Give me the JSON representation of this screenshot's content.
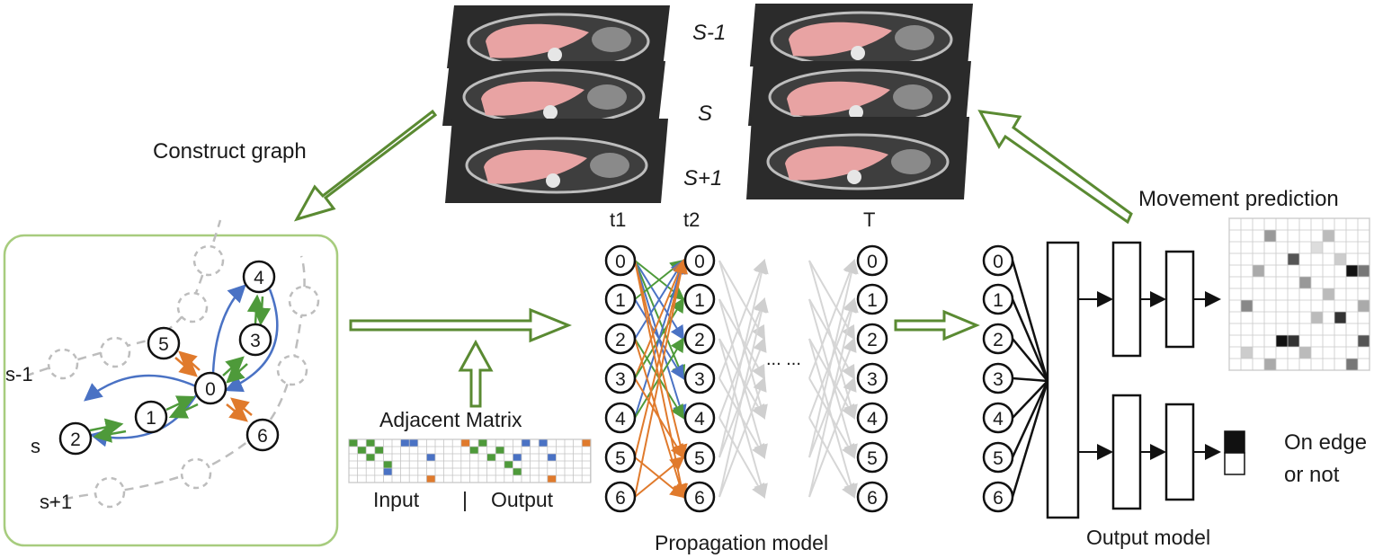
{
  "slices": {
    "prev": "S-1",
    "curr": "S",
    "next": "S+1"
  },
  "arrows": {
    "construct_graph": "Construct graph"
  },
  "graph": {
    "row_labels": {
      "prev": "s-1",
      "curr": "s",
      "next": "s+1"
    },
    "node_ids": [
      "0",
      "1",
      "2",
      "3",
      "4",
      "5",
      "6"
    ]
  },
  "adjacency": {
    "title": "Adjacent Matrix",
    "input": "Input",
    "sep": "|",
    "output": "Output"
  },
  "propagation": {
    "t1": "t1",
    "t2": "t2",
    "T": "T",
    "ellipsis": "... ...",
    "title": "Propagation model",
    "node_ids": [
      "0",
      "1",
      "2",
      "3",
      "4",
      "5",
      "6"
    ]
  },
  "output_model": {
    "title": "Output model",
    "movement_prediction": "Movement prediction",
    "on_edge_line1": "On edge",
    "on_edge_line2": "or not",
    "node_ids": [
      "0",
      "1",
      "2",
      "3",
      "4",
      "5",
      "6"
    ]
  },
  "colors": {
    "green_arrow": "#5a8a32",
    "blue_edge": "#4a72c4",
    "orange_edge": "#e07a2c",
    "green_edge": "#4e9a3a",
    "gray_edge": "#bdbdbd",
    "box_border": "#a7cc7e",
    "liver": "#e8a3a3",
    "ct_bg": "#2b2b2b"
  }
}
